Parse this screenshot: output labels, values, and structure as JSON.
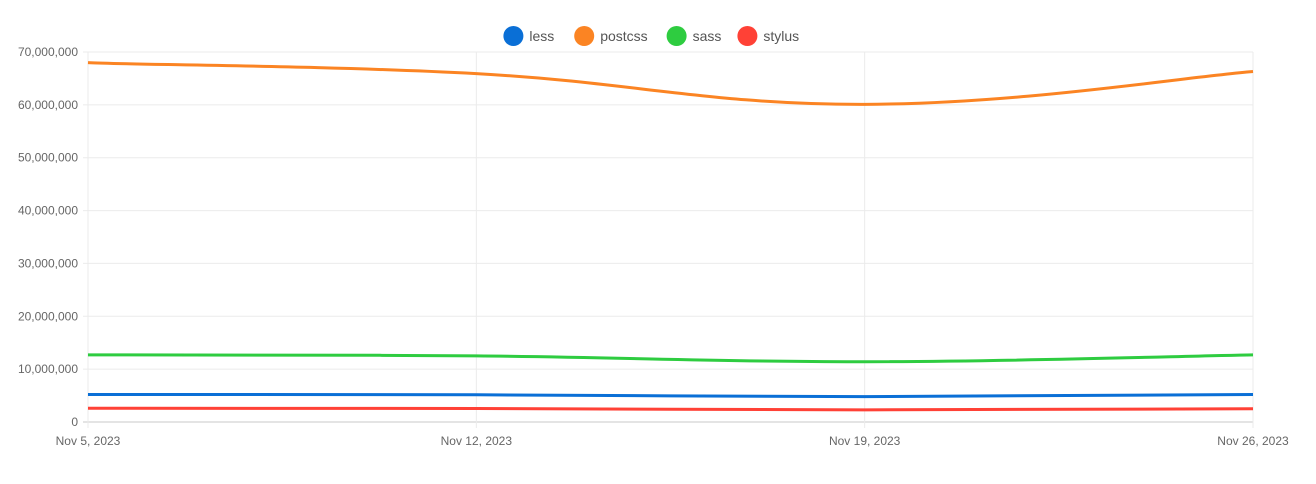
{
  "chart_data": {
    "type": "line",
    "categories": [
      "Nov 5, 2023",
      "Nov 12, 2023",
      "Nov 19, 2023",
      "Nov 26, 2023"
    ],
    "ylim": [
      0,
      70000000
    ],
    "yticks": [
      "0",
      "10,000,000",
      "20,000,000",
      "30,000,000",
      "40,000,000",
      "50,000,000",
      "60,000,000",
      "70,000,000"
    ],
    "grid": true,
    "legend_position": "top",
    "series": [
      {
        "name": "less",
        "color": "#0a6fd6",
        "values": [
          5200000,
          5150000,
          4800000,
          5200000
        ]
      },
      {
        "name": "postcss",
        "color": "#fb8423",
        "values": [
          68000000,
          65900000,
          60100000,
          66300000
        ]
      },
      {
        "name": "sass",
        "color": "#2ecc40",
        "values": [
          12700000,
          12500000,
          11400000,
          12700000
        ]
      },
      {
        "name": "stylus",
        "color": "#ff4136",
        "values": [
          2600000,
          2550000,
          2300000,
          2500000
        ]
      }
    ]
  }
}
